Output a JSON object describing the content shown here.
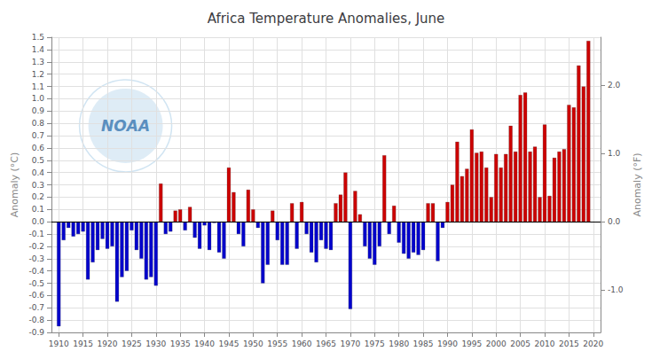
{
  "chart_data": {
    "type": "bar",
    "title": "Africa Temperature Anomalies, June",
    "ylabel": "Anomaly (°C)",
    "y2label": "Anomaly (°F)",
    "annotations": [
      "NOAA"
    ],
    "x": [
      1910,
      1911,
      1912,
      1913,
      1914,
      1915,
      1916,
      1917,
      1918,
      1919,
      1920,
      1921,
      1922,
      1923,
      1924,
      1925,
      1926,
      1927,
      1928,
      1929,
      1930,
      1931,
      1932,
      1933,
      1934,
      1935,
      1936,
      1937,
      1938,
      1939,
      1940,
      1941,
      1942,
      1943,
      1944,
      1945,
      1946,
      1947,
      1948,
      1949,
      1950,
      1951,
      1952,
      1953,
      1954,
      1955,
      1956,
      1957,
      1958,
      1959,
      1960,
      1961,
      1962,
      1963,
      1964,
      1965,
      1966,
      1967,
      1968,
      1969,
      1970,
      1971,
      1972,
      1973,
      1974,
      1975,
      1976,
      1977,
      1978,
      1979,
      1980,
      1981,
      1982,
      1983,
      1984,
      1985,
      1986,
      1987,
      1988,
      1989,
      1990,
      1991,
      1992,
      1993,
      1994,
      1995,
      1996,
      1997,
      1998,
      1999,
      2000,
      2001,
      2002,
      2003,
      2004,
      2005,
      2006,
      2007,
      2008,
      2009,
      2010,
      2011,
      2012,
      2013,
      2014,
      2015,
      2016,
      2017,
      2018,
      2019
    ],
    "values": [
      -0.85,
      -0.15,
      -0.05,
      -0.12,
      -0.1,
      -0.08,
      -0.47,
      -0.33,
      -0.23,
      -0.14,
      -0.22,
      -0.2,
      -0.65,
      -0.45,
      -0.4,
      -0.07,
      -0.23,
      -0.3,
      -0.47,
      -0.45,
      -0.52,
      0.31,
      -0.1,
      -0.08,
      0.09,
      0.1,
      -0.07,
      0.12,
      -0.13,
      -0.22,
      -0.03,
      -0.23,
      -0.01,
      -0.25,
      -0.3,
      0.44,
      0.24,
      -0.1,
      -0.2,
      0.26,
      0.1,
      -0.05,
      -0.5,
      -0.35,
      0.09,
      -0.15,
      -0.35,
      -0.35,
      0.15,
      -0.22,
      0.16,
      -0.1,
      -0.25,
      -0.33,
      -0.15,
      -0.22,
      -0.23,
      0.15,
      0.22,
      0.4,
      -0.71,
      0.25,
      0.06,
      -0.2,
      -0.3,
      -0.35,
      -0.2,
      0.54,
      -0.1,
      0.13,
      -0.17,
      -0.26,
      -0.3,
      -0.25,
      -0.27,
      -0.23,
      0.15,
      0.15,
      -0.32,
      -0.05,
      0.16,
      0.3,
      0.65,
      0.37,
      0.43,
      0.75,
      0.56,
      0.57,
      0.44,
      0.2,
      0.55,
      0.44,
      0.55,
      0.78,
      0.57,
      1.03,
      1.05,
      0.57,
      0.61,
      0.2,
      0.79,
      0.21,
      0.52,
      0.57,
      0.59,
      0.95,
      0.93,
      1.27,
      1.1,
      1.47
    ],
    "colors": [
      "#0000cc",
      "#0000cc",
      "#0000cc",
      "#0000cc",
      "#0000cc",
      "#0000cc",
      "#0000cc",
      "#0000cc",
      "#0000cc",
      "#0000cc",
      "#0000cc",
      "#0000cc",
      "#0000cc",
      "#0000cc",
      "#0000cc",
      "#0000cc",
      "#0000cc",
      "#0000cc",
      "#0000cc",
      "#0000cc",
      "#0000cc",
      "#cc0000",
      "#0000cc",
      "#0000cc",
      "#cc0000",
      "#cc0000",
      "#0000cc",
      "#cc0000",
      "#0000cc",
      "#0000cc",
      "#0000cc",
      "#0000cc",
      "#0000cc",
      "#0000cc",
      "#0000cc",
      "#cc0000",
      "#cc0000",
      "#0000cc",
      "#0000cc",
      "#cc0000",
      "#cc0000",
      "#0000cc",
      "#0000cc",
      "#0000cc",
      "#cc0000",
      "#0000cc",
      "#0000cc",
      "#0000cc",
      "#cc0000",
      "#0000cc",
      "#cc0000",
      "#0000cc",
      "#0000cc",
      "#0000cc",
      "#0000cc",
      "#0000cc",
      "#0000cc",
      "#cc0000",
      "#cc0000",
      "#cc0000",
      "#0000cc",
      "#cc0000",
      "#cc0000",
      "#0000cc",
      "#0000cc",
      "#0000cc",
      "#0000cc",
      "#cc0000",
      "#0000cc",
      "#cc0000",
      "#0000cc",
      "#0000cc",
      "#0000cc",
      "#0000cc",
      "#0000cc",
      "#0000cc",
      "#cc0000",
      "#cc0000",
      "#0000cc",
      "#0000cc",
      "#cc0000",
      "#cc0000",
      "#cc0000",
      "#cc0000",
      "#cc0000",
      "#cc0000",
      "#cc0000",
      "#cc0000",
      "#cc0000",
      "#cc0000",
      "#cc0000",
      "#cc0000",
      "#cc0000",
      "#cc0000",
      "#cc0000",
      "#cc0000",
      "#cc0000",
      "#cc0000",
      "#cc0000",
      "#cc0000",
      "#cc0000",
      "#cc0000",
      "#cc0000",
      "#cc0000",
      "#cc0000",
      "#cc0000",
      "#cc0000",
      "#cc0000",
      "#cc0000",
      "#cc0000"
    ],
    "xlim": [
      1908.5,
      2021.5
    ],
    "xticks": [
      1910,
      1915,
      1920,
      1925,
      1930,
      1935,
      1940,
      1945,
      1950,
      1955,
      1960,
      1965,
      1970,
      1975,
      1980,
      1985,
      1990,
      1995,
      2000,
      2005,
      2010,
      2015,
      2020
    ],
    "ylim": [
      -0.9,
      1.5
    ],
    "yticks": [
      -0.9,
      -0.8,
      -0.7,
      -0.6,
      -0.5,
      -0.4,
      -0.3,
      -0.2,
      -0.1,
      {
        "value": 0,
        "label": "0.0"
      },
      0.1,
      0.2,
      0.3,
      0.4,
      0.5,
      0.6,
      0.7,
      0.8,
      0.9,
      {
        "value": 1,
        "label": "1.0"
      },
      1.1,
      1.2,
      1.3,
      1.4,
      1.5
    ],
    "y2lim": [
      -1.62,
      2.7
    ],
    "y2ticks": [
      {
        "value": -1,
        "label": "-1.0"
      },
      {
        "value": 0,
        "label": "0.0"
      },
      {
        "value": 1,
        "label": "1.0"
      },
      {
        "value": 2,
        "label": "2.0"
      }
    ],
    "grid": true
  }
}
